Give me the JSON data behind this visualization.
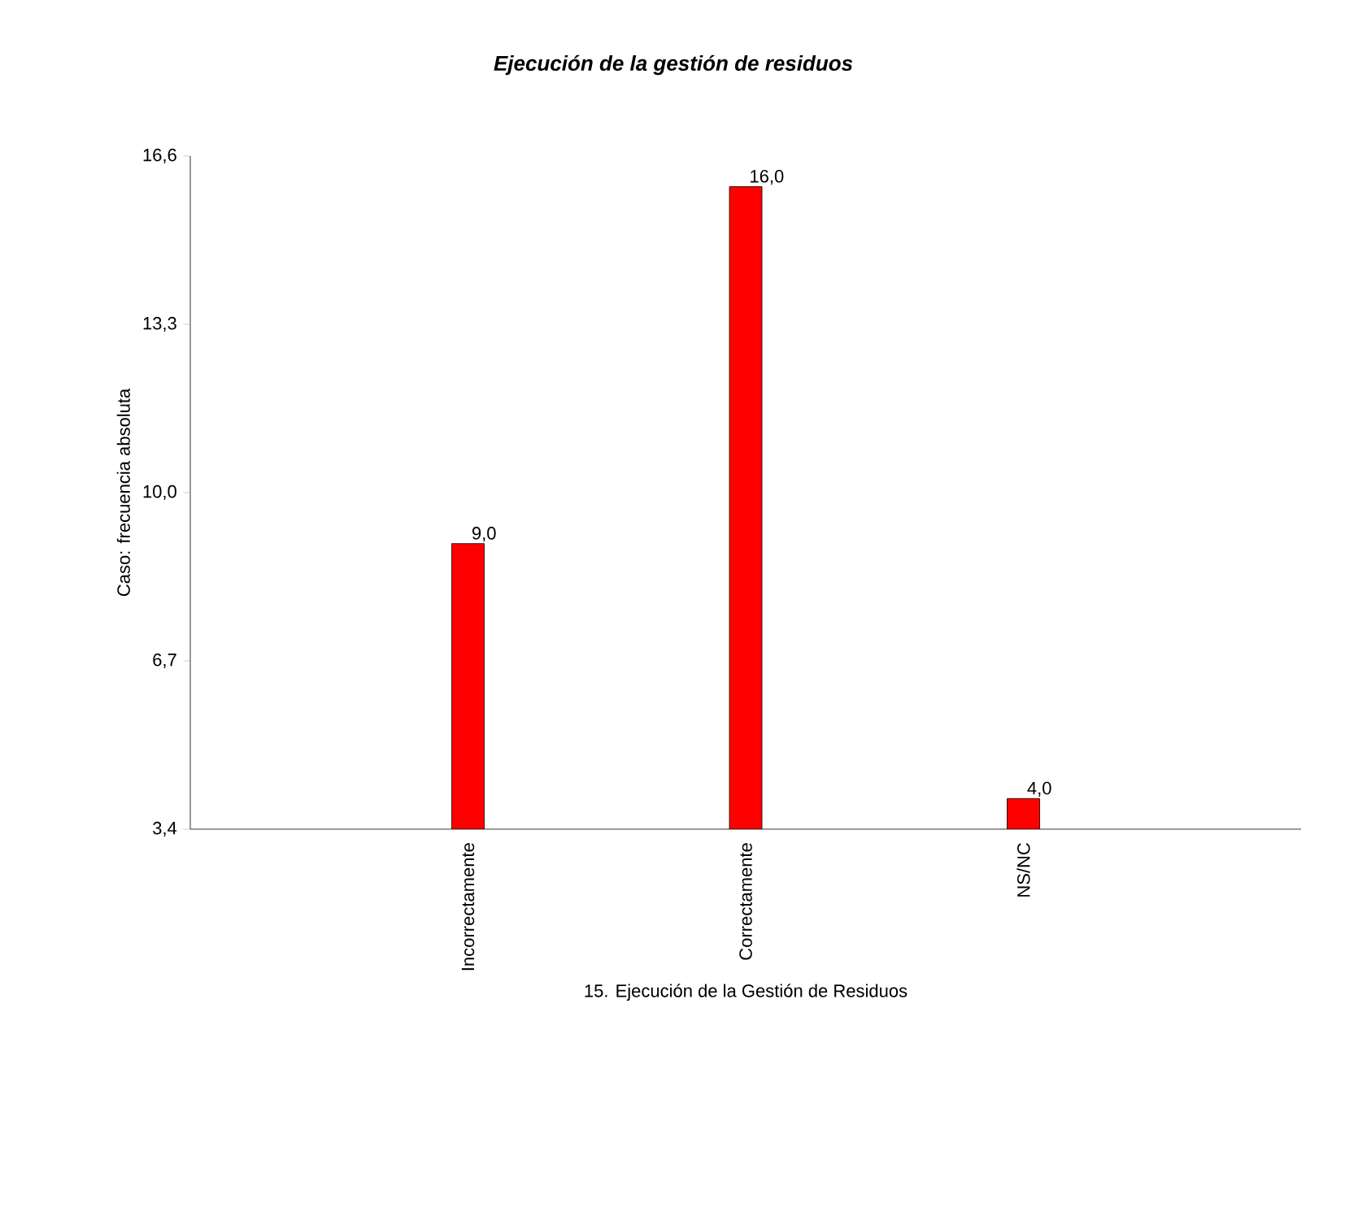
{
  "chart_data": {
    "type": "bar",
    "title": "Ejecución de la gestión de residuos",
    "xlabel": "15. Ejecución de la Gestión de Residuos",
    "ylabel": "Caso: frecuencia absoluta",
    "categories": [
      "Incorrectamente",
      "Correctamente",
      "NS/NC"
    ],
    "values": [
      9.0,
      16.0,
      4.0
    ],
    "value_labels": [
      "9,0",
      "16,0",
      "4,0"
    ],
    "color": "#ff0000",
    "ylim": [
      3.4,
      16.6
    ],
    "yticks": [
      {
        "value": 3.4,
        "label": "3,4"
      },
      {
        "value": 6.7,
        "label": "6,7"
      },
      {
        "value": 10.0,
        "label": "10,0"
      },
      {
        "value": 13.3,
        "label": "13,3"
      },
      {
        "value": 16.6,
        "label": "16,6"
      }
    ],
    "grid": false
  }
}
